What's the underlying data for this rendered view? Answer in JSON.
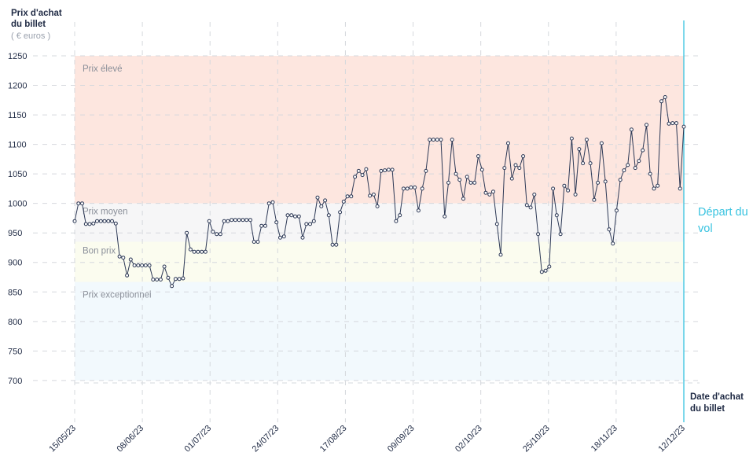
{
  "chart_data": {
    "type": "line",
    "ylabel": "Prix d'achat du billet",
    "yunit": "( € euros )",
    "xlabel": "Date d'achat du billet",
    "event_label": "Départ du vol",
    "ylim": [
      650,
      1250
    ],
    "yticks": [
      700,
      750,
      800,
      850,
      900,
      950,
      1000,
      1050,
      1100,
      1150,
      1200,
      1250
    ],
    "x_start": "15/05/23",
    "x_end": "12/12/23",
    "xticks": [
      "15/05/23",
      "08/06/23",
      "01/07/23",
      "24/07/23",
      "17/08/23",
      "09/09/23",
      "02/10/23",
      "25/10/23",
      "18/11/23",
      "12/12/23"
    ],
    "grid": true,
    "zones": [
      {
        "label": "Prix élevé",
        "from": 1000,
        "to": 1250,
        "color": "#fde6df"
      },
      {
        "label": "Prix moyen",
        "from": 935,
        "to": 1000,
        "color": "#f6f6f7"
      },
      {
        "label": "Bon prix",
        "from": 867,
        "to": 935,
        "color": "#fbfcef"
      },
      {
        "label": "Prix exceptionnel",
        "from": 700,
        "to": 867,
        "color": "#f2f9fd"
      }
    ],
    "line_color": "#2d3956",
    "event_color": "#38c3e0",
    "series": [
      {
        "values": [
          970,
          1000,
          1000,
          965,
          965,
          966,
          970,
          970,
          970,
          970,
          970,
          966,
          910,
          908,
          878,
          905,
          895,
          895,
          895,
          895,
          895,
          871,
          871,
          871,
          893,
          874,
          860,
          872,
          872,
          873,
          950,
          922,
          918,
          918,
          918,
          918,
          970,
          952,
          948,
          948,
          970,
          970,
          972,
          972,
          972,
          972,
          972,
          972,
          935,
          935,
          962,
          962,
          1000,
          1002,
          968,
          942,
          944,
          980,
          980,
          978,
          978,
          942,
          965,
          965,
          970,
          1010,
          995,
          1005,
          980,
          930,
          930,
          985,
          1003,
          1012,
          1012,
          1045,
          1055,
          1048,
          1058,
          1013,
          1015,
          995,
          1055,
          1056,
          1057,
          1057,
          970,
          980,
          1025,
          1025,
          1027,
          1027,
          988,
          1025,
          1055,
          1108,
          1108,
          1108,
          1108,
          978,
          1035,
          1108,
          1050,
          1040,
          1008,
          1045,
          1035,
          1035,
          1080,
          1057,
          1018,
          1015,
          1020,
          965,
          913,
          1060,
          1102,
          1042,
          1065,
          1060,
          1080,
          997,
          993,
          1015,
          948,
          884,
          886,
          893,
          1025,
          980,
          948,
          1030,
          1022,
          1110,
          1015,
          1092,
          1068,
          1108,
          1068,
          1006,
          1035,
          1102,
          1037,
          956,
          932,
          988,
          1040,
          1056,
          1065,
          1125,
          1060,
          1072,
          1090,
          1133,
          1050,
          1025,
          1030,
          1173,
          1180,
          1135,
          1136,
          1136,
          1025,
          1130
        ]
      }
    ]
  }
}
